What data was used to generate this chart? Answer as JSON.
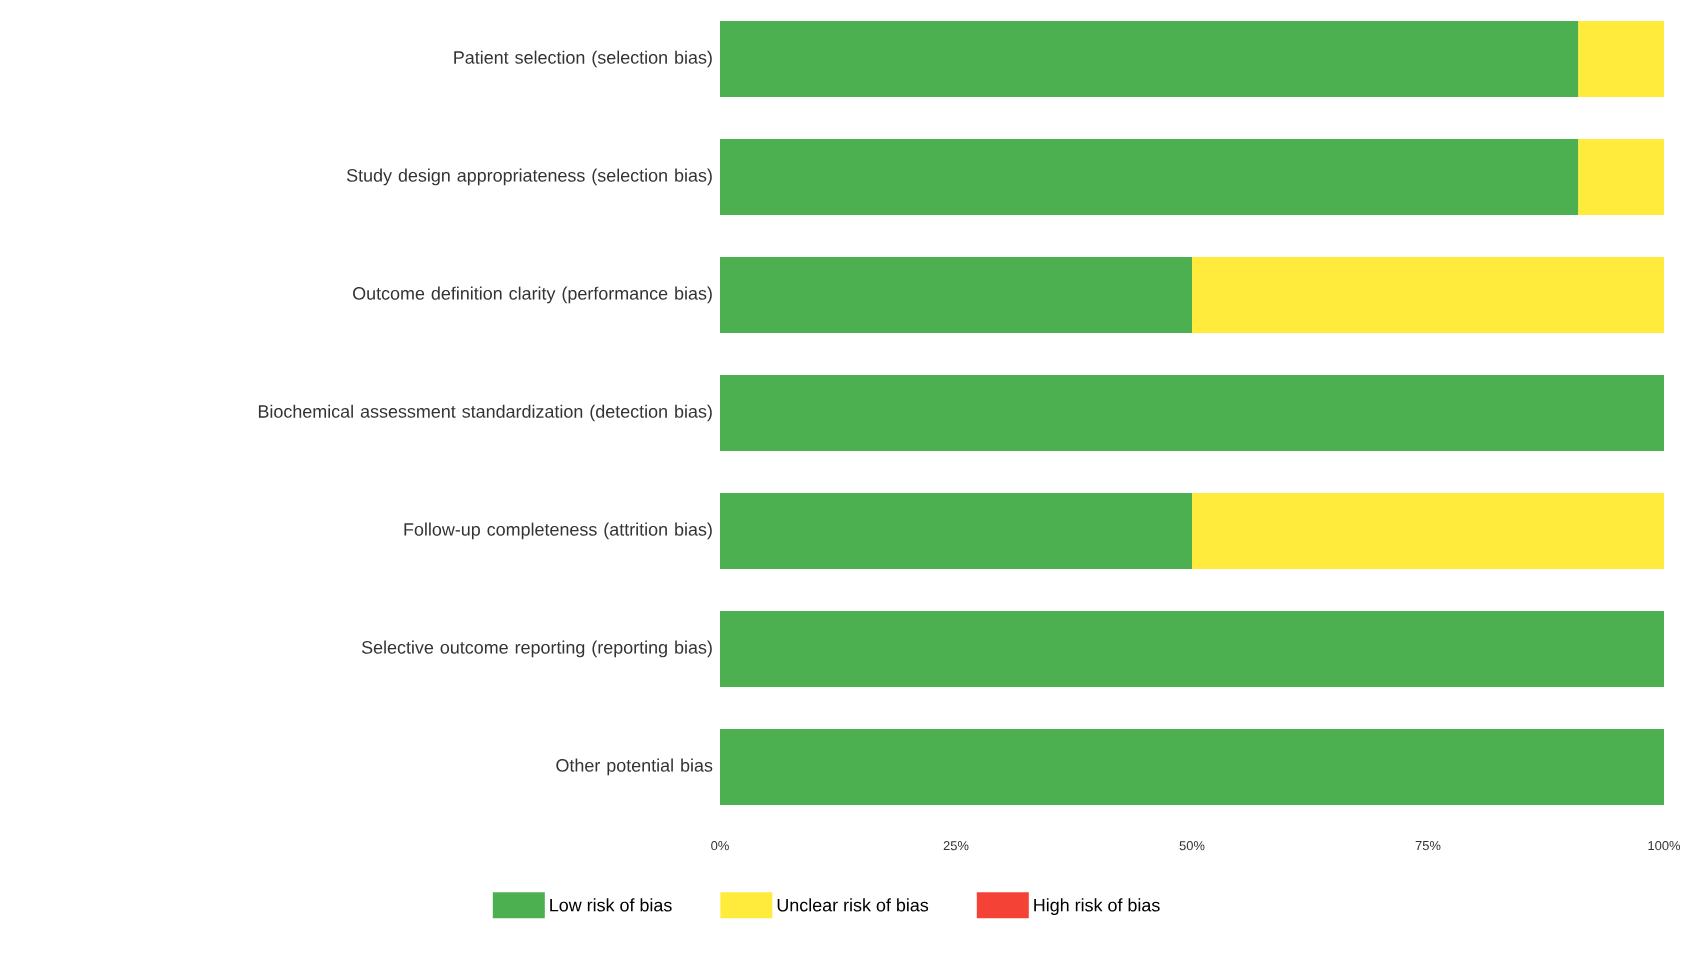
{
  "chart_data": {
    "type": "bar",
    "orientation": "horizontal",
    "stacked": true,
    "categories": [
      "Patient selection (selection bias)",
      "Study design appropriateness (selection bias)",
      "Outcome definition clarity (performance bias)",
      "Biochemical assessment standardization (detection bias)",
      "Follow-up completeness (attrition bias)",
      "Selective outcome reporting (reporting bias)",
      "Other potential bias"
    ],
    "series": [
      {
        "name": "Low risk of bias",
        "color": "#4caf50",
        "values": [
          90.9,
          90.9,
          50,
          100,
          50,
          100,
          100
        ]
      },
      {
        "name": "Unclear risk of bias",
        "color": "#ffeb3b",
        "values": [
          9.1,
          9.1,
          50,
          0,
          50,
          0,
          0
        ]
      },
      {
        "name": "High risk of bias",
        "color": "#f44336",
        "values": [
          0,
          0,
          0,
          0,
          0,
          0,
          0
        ]
      }
    ],
    "xlim": [
      0,
      100
    ],
    "xticks": [
      {
        "value": 0,
        "label": "0%"
      },
      {
        "value": 25,
        "label": "25%"
      },
      {
        "value": 50,
        "label": "50%"
      },
      {
        "value": 75,
        "label": "75%"
      },
      {
        "value": 100,
        "label": "100%"
      }
    ],
    "legend": "bottom",
    "grid": false
  }
}
